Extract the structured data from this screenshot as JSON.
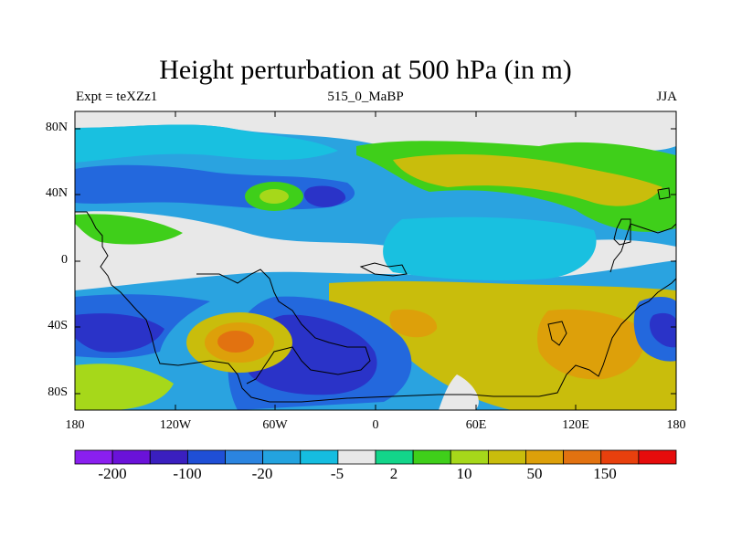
{
  "title": "Height perturbation at 500 hPa (in m)",
  "subtitle_left": "Expt = teXZz1",
  "subtitle_center": "515_0_MaBP",
  "subtitle_right": "JJA",
  "lat_labels": [
    "80N",
    "40N",
    "0",
    "40S",
    "80S"
  ],
  "lon_labels": [
    "180",
    "120W",
    "60W",
    "0",
    "60E",
    "120E",
    "180"
  ],
  "colorbar": {
    "labels": [
      "-200",
      "-100",
      "-20",
      "-5",
      "2",
      "10",
      "50",
      "150"
    ],
    "colors": [
      "#8a1fef",
      "#6a12d9",
      "#3a1fbf",
      "#1f4fd6",
      "#2b84e0",
      "#23a3df",
      "#15bde0",
      "#e8e8e8",
      "#13d58a",
      "#3fcf1a",
      "#a6d81a",
      "#c9bd0c",
      "#dda00a",
      "#e27210",
      "#e8400d",
      "#e60c0c"
    ]
  },
  "map_colors": {
    "neutral": "#e8e8e8",
    "neg_strong": "#2a33c8",
    "neg_mid": "#2368dd",
    "neg_weak": "#2aa3e0",
    "neg_light": "#19c0e0",
    "pos_light": "#14d58a",
    "pos_green": "#3fcf1a",
    "pos_yellowgreen": "#a6d81a",
    "pos_yellow": "#c9bd0c",
    "pos_orange": "#dda00a",
    "pos_deeporange": "#e27210"
  }
}
